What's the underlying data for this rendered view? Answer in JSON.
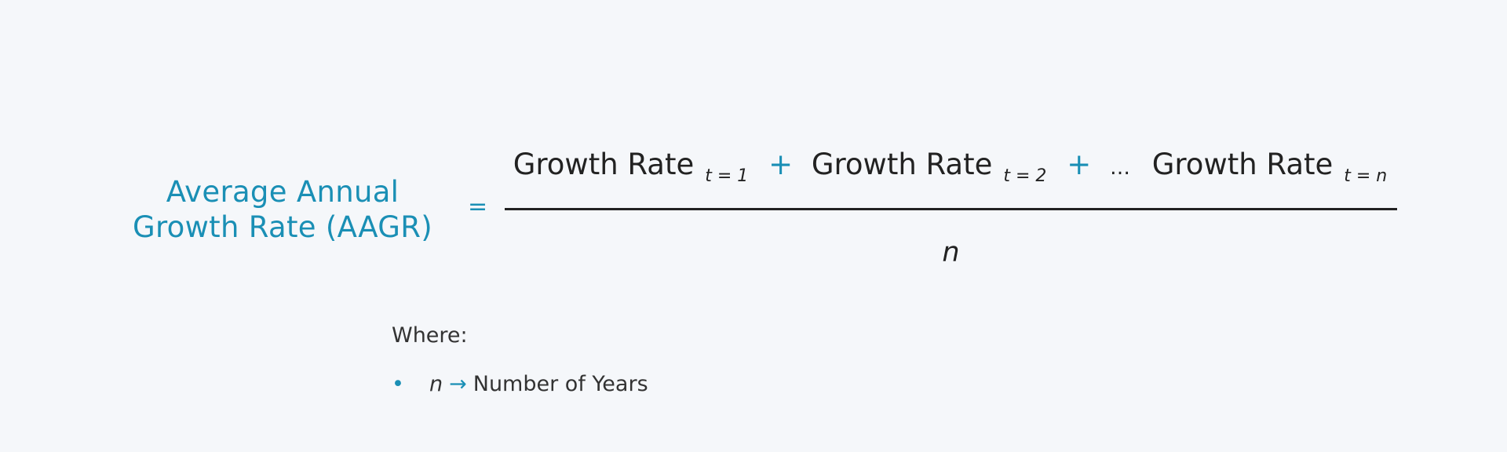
{
  "formula": {
    "lhs_line1": "Average Annual",
    "lhs_line2": "Growth Rate (AAGR)",
    "equals": "=",
    "numerator": {
      "term1_label": "Growth Rate",
      "term1_sub": "t = 1",
      "plus1": "+",
      "term2_label": "Growth Rate",
      "term2_sub": "t = 2",
      "plus2": "+",
      "ellipsis": "…",
      "term3_label": "Growth Rate",
      "term3_sub": "t = n"
    },
    "denominator": "n"
  },
  "legend": {
    "title": "Where:",
    "items": [
      {
        "bullet": "•",
        "variable": "n",
        "arrow": "→",
        "description": "Number of Years"
      }
    ]
  },
  "colors": {
    "accent": "#1a8fb5",
    "text": "#222222",
    "background": "#f5f7fa"
  }
}
